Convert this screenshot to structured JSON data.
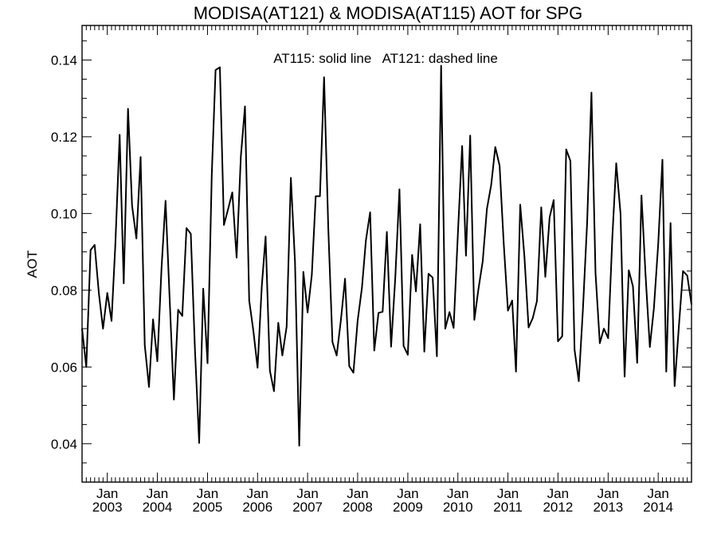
{
  "chart_data": {
    "type": "line",
    "title": "MODISA(AT121) & MODISA(AT115)  AOT for SPG",
    "xlabel": "",
    "ylabel": "AOT",
    "annotation": "AT115: solid line   AT121: dashed line",
    "xlim": [
      "2002-07-01",
      "2014-09-01"
    ],
    "ylim": [
      0.03,
      0.149
    ],
    "y_ticks": [
      0.04,
      0.06,
      0.08,
      0.1,
      0.12,
      0.14
    ],
    "y_tick_labels": [
      "0.04",
      "0.06",
      "0.08",
      "0.10",
      "0.12",
      "0.14"
    ],
    "x_ticks": [
      "2003-01-01",
      "2004-01-01",
      "2005-01-01",
      "2006-01-01",
      "2007-01-01",
      "2008-01-01",
      "2009-01-01",
      "2010-01-01",
      "2011-01-01",
      "2012-01-01",
      "2013-01-01",
      "2014-01-01"
    ],
    "x_tick_labels_top": [
      "Jan",
      "Jan",
      "Jan",
      "Jan",
      "Jan",
      "Jan",
      "Jan",
      "Jan",
      "Jan",
      "Jan",
      "Jan",
      "Jan"
    ],
    "x_tick_labels_bottom": [
      "2003",
      "2004",
      "2005",
      "2006",
      "2007",
      "2008",
      "2009",
      "2010",
      "2011",
      "2012",
      "2013",
      "2014"
    ],
    "grid": false,
    "series": [
      {
        "name": "AT115",
        "style": "solid",
        "color": "#000000",
        "x": [
          "2002-07-01",
          "2002-08-01",
          "2002-09-01",
          "2002-10-01",
          "2002-11-01",
          "2002-12-01",
          "2003-01-01",
          "2003-02-01",
          "2003-03-01",
          "2003-04-01",
          "2003-05-01",
          "2003-06-01",
          "2003-07-01",
          "2003-08-01",
          "2003-09-01",
          "2003-10-01",
          "2003-11-01",
          "2003-12-01",
          "2004-01-01",
          "2004-02-01",
          "2004-03-01",
          "2004-04-01",
          "2004-05-01",
          "2004-06-01",
          "2004-07-01",
          "2004-08-01",
          "2004-09-01",
          "2004-10-01",
          "2004-11-01",
          "2004-12-01",
          "2005-01-01",
          "2005-02-01",
          "2005-03-01",
          "2005-04-01",
          "2005-05-01",
          "2005-06-01",
          "2005-07-01",
          "2005-08-01",
          "2005-09-01",
          "2005-10-01",
          "2005-11-01",
          "2005-12-01",
          "2006-01-01",
          "2006-02-01",
          "2006-03-01",
          "2006-04-01",
          "2006-05-01",
          "2006-06-01",
          "2006-07-01",
          "2006-08-01",
          "2006-09-01",
          "2006-10-01",
          "2006-11-01",
          "2006-12-01",
          "2007-01-01",
          "2007-02-01",
          "2007-03-01",
          "2007-04-01",
          "2007-05-01",
          "2007-06-01",
          "2007-07-01",
          "2007-08-01",
          "2007-09-01",
          "2007-10-01",
          "2007-11-01",
          "2007-12-01",
          "2008-01-01",
          "2008-02-01",
          "2008-03-01",
          "2008-04-01",
          "2008-05-01",
          "2008-06-01",
          "2008-07-01",
          "2008-08-01",
          "2008-09-01",
          "2008-10-01",
          "2008-11-01",
          "2008-12-01",
          "2009-01-01",
          "2009-02-01",
          "2009-03-01",
          "2009-04-01",
          "2009-05-01",
          "2009-06-01",
          "2009-07-01",
          "2009-08-01",
          "2009-09-01",
          "2009-10-01",
          "2009-11-01",
          "2009-12-01",
          "2010-01-01",
          "2010-02-01",
          "2010-03-01",
          "2010-04-01",
          "2010-05-01",
          "2010-06-01",
          "2010-07-01",
          "2010-08-01",
          "2010-09-01",
          "2010-10-01",
          "2010-11-01",
          "2010-12-01",
          "2011-01-01",
          "2011-02-01",
          "2011-03-01",
          "2011-04-01",
          "2011-05-01",
          "2011-06-01",
          "2011-07-01",
          "2011-08-01",
          "2011-09-01",
          "2011-10-01",
          "2011-11-01",
          "2011-12-01",
          "2012-01-01",
          "2012-02-01",
          "2012-03-01",
          "2012-04-01",
          "2012-05-01",
          "2012-06-01",
          "2012-07-01",
          "2012-08-01",
          "2012-09-01",
          "2012-10-01",
          "2012-11-01",
          "2012-12-01",
          "2013-01-01",
          "2013-02-01",
          "2013-03-01",
          "2013-04-01",
          "2013-05-01",
          "2013-06-01",
          "2013-07-01",
          "2013-08-01",
          "2013-09-01",
          "2013-10-01",
          "2013-11-01",
          "2013-12-01",
          "2014-01-01",
          "2014-02-01",
          "2014-03-01",
          "2014-04-01",
          "2014-05-01",
          "2014-06-01",
          "2014-07-01",
          "2014-08-01",
          "2014-09-01"
        ],
        "y": [
          0.07,
          0.06,
          0.0905,
          0.0918,
          0.079,
          0.07,
          0.0793,
          0.072,
          0.092,
          0.1205,
          0.0818,
          0.1273,
          0.102,
          0.0935,
          0.1147,
          0.0657,
          0.0548,
          0.0724,
          0.0615,
          0.086,
          0.1033,
          0.077,
          0.0515,
          0.0749,
          0.0733,
          0.0962,
          0.0947,
          0.0651,
          0.0402,
          0.0804,
          0.061,
          0.11,
          0.1374,
          0.1381,
          0.097,
          0.1013,
          0.1055,
          0.0885,
          0.1148,
          0.1279,
          0.0773,
          0.0695,
          0.0598,
          0.081,
          0.094,
          0.059,
          0.0537,
          0.0715,
          0.063,
          0.0705,
          0.1093,
          0.0873,
          0.0395,
          0.0848,
          0.0742,
          0.084,
          0.1045,
          0.1045,
          0.1355,
          0.096,
          0.0665,
          0.063,
          0.0722,
          0.083,
          0.0602,
          0.0585,
          0.072,
          0.0806,
          0.093,
          0.1003,
          0.0643,
          0.0741,
          0.0744,
          0.0952,
          0.0653,
          0.083,
          0.1063,
          0.0655,
          0.0632,
          0.0892,
          0.0797,
          0.0972,
          0.064,
          0.0843,
          0.0833,
          0.0628,
          0.1385,
          0.07,
          0.0743,
          0.0702,
          0.0945,
          0.1176,
          0.089,
          0.1203,
          0.0723,
          0.0805,
          0.0875,
          0.1012,
          0.1075,
          0.1173,
          0.1125,
          0.0925,
          0.0747,
          0.0773,
          0.0588,
          0.1023,
          0.089,
          0.0703,
          0.0727,
          0.0772,
          0.1016,
          0.0835,
          0.099,
          0.1035,
          0.0667,
          0.068,
          0.1167,
          0.1137,
          0.0645,
          0.0563,
          0.075,
          0.0977,
          0.1315,
          0.0845,
          0.0662,
          0.07,
          0.0675,
          0.0941,
          0.1131,
          0.1,
          0.0575,
          0.0852,
          0.081,
          0.0611,
          0.1047,
          0.084,
          0.0652,
          0.0753,
          0.092,
          0.114,
          0.0588,
          0.0975,
          0.055,
          0.0707,
          0.085,
          0.0838,
          0.0763
        ]
      }
    ]
  }
}
